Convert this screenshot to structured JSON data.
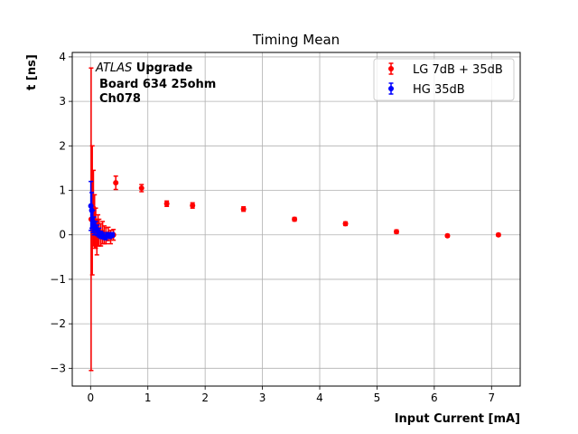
{
  "chart_data": {
    "type": "scatter",
    "title": "Timing Mean",
    "xlabel": "Input Current [mA]",
    "ylabel": "t [ns]",
    "xlim": [
      -0.32,
      7.5
    ],
    "ylim": [
      -3.4,
      4.1
    ],
    "grid": true,
    "legend_position": "top-right",
    "xticks": [
      0,
      1,
      2,
      3,
      4,
      5,
      6,
      7
    ],
    "yticks": [
      -3,
      -2,
      -1,
      0,
      1,
      2,
      3,
      4
    ],
    "annotation": {
      "atlas": "ATLAS",
      "upgrade": " Upgrade",
      "line2": "Board 634 25ohm",
      "line3": "Ch078"
    },
    "series": [
      {
        "name": "LG 7dB + 35dB",
        "color": "#ff0000",
        "points": [
          {
            "x": 0.01,
            "y": 0.35,
            "err": 3.4
          },
          {
            "x": 0.03,
            "y": 0.55,
            "err": 1.45
          },
          {
            "x": 0.05,
            "y": 0.6,
            "err": 0.85
          },
          {
            "x": 0.07,
            "y": 0.3,
            "err": 0.6
          },
          {
            "x": 0.09,
            "y": 0.15,
            "err": 0.45
          },
          {
            "x": 0.11,
            "y": -0.05,
            "err": 0.4
          },
          {
            "x": 0.13,
            "y": 0.1,
            "err": 0.35
          },
          {
            "x": 0.15,
            "y": 0.05,
            "err": 0.3
          },
          {
            "x": 0.18,
            "y": 0.0,
            "err": 0.25
          },
          {
            "x": 0.21,
            "y": 0.05,
            "err": 0.25
          },
          {
            "x": 0.24,
            "y": 0.0,
            "err": 0.2
          },
          {
            "x": 0.27,
            "y": -0.02,
            "err": 0.18
          },
          {
            "x": 0.31,
            "y": 0.02,
            "err": 0.15
          },
          {
            "x": 0.35,
            "y": -0.05,
            "err": 0.15
          },
          {
            "x": 0.4,
            "y": 0.0,
            "err": 0.12
          },
          {
            "x": 0.44,
            "y": 1.17,
            "err": 0.15
          },
          {
            "x": 0.89,
            "y": 1.05,
            "err": 0.08
          },
          {
            "x": 1.33,
            "y": 0.7,
            "err": 0.06
          },
          {
            "x": 1.78,
            "y": 0.66,
            "err": 0.06
          },
          {
            "x": 2.67,
            "y": 0.58,
            "err": 0.05
          },
          {
            "x": 3.56,
            "y": 0.35,
            "err": 0.04
          },
          {
            "x": 4.45,
            "y": 0.25,
            "err": 0.04
          },
          {
            "x": 5.34,
            "y": 0.07,
            "err": 0.04
          },
          {
            "x": 6.23,
            "y": -0.02,
            "err": 0.03
          },
          {
            "x": 7.12,
            "y": 0.0,
            "err": 0.03
          }
        ]
      },
      {
        "name": "HG 35dB",
        "color": "#0000ff",
        "points": [
          {
            "x": 0.005,
            "y": 0.65,
            "err": 0.55
          },
          {
            "x": 0.02,
            "y": 0.55,
            "err": 0.4
          },
          {
            "x": 0.04,
            "y": 0.3,
            "err": 0.25
          },
          {
            "x": 0.06,
            "y": 0.2,
            "err": 0.2
          },
          {
            "x": 0.09,
            "y": 0.15,
            "err": 0.15
          },
          {
            "x": 0.12,
            "y": 0.1,
            "err": 0.12
          },
          {
            "x": 0.15,
            "y": 0.05,
            "err": 0.1
          },
          {
            "x": 0.18,
            "y": 0.0,
            "err": 0.08
          },
          {
            "x": 0.22,
            "y": -0.02,
            "err": 0.07
          },
          {
            "x": 0.26,
            "y": -0.05,
            "err": 0.06
          },
          {
            "x": 0.3,
            "y": 0.0,
            "err": 0.05
          },
          {
            "x": 0.34,
            "y": -0.03,
            "err": 0.05
          },
          {
            "x": 0.38,
            "y": 0.0,
            "err": 0.05
          }
        ]
      }
    ]
  }
}
